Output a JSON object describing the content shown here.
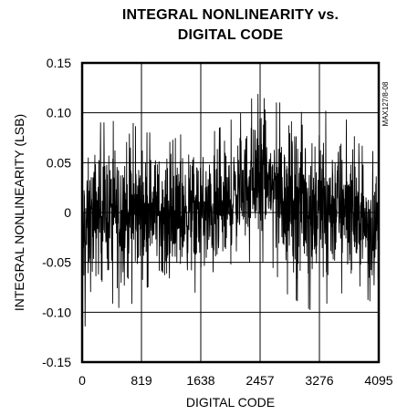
{
  "chart_data": {
    "type": "line",
    "title_lines": [
      "INTEGRAL NONLINEARITY vs.",
      "DIGITAL CODE"
    ],
    "xlabel": "DIGITAL CODE",
    "ylabel": "INTEGRAL NONLINEARITY (LSB)",
    "figure_id": "MAX127/8-08",
    "xlim": [
      0,
      4095
    ],
    "ylim": [
      -0.15,
      0.15
    ],
    "x_ticks": [
      0,
      819,
      1638,
      2457,
      3276,
      4095
    ],
    "x_tick_labels": [
      "0",
      "819",
      "1638",
      "2457",
      "3276",
      "4095"
    ],
    "y_ticks": [
      -0.15,
      -0.1,
      -0.05,
      0,
      0.05,
      0.1,
      0.15
    ],
    "y_tick_labels": [
      "-0.15",
      "-0.10",
      "-0.05",
      "0",
      "0.05",
      "0.10",
      "0.15"
    ],
    "grid": true,
    "series": [
      {
        "color": "#000000",
        "envelope": {
          "x": [
            0,
            200,
            400,
            600,
            800,
            1000,
            1200,
            1400,
            1638,
            1800,
            2000,
            2200,
            2400,
            2600,
            2800,
            3000,
            3200,
            3400,
            3600,
            3800,
            4000,
            4095
          ],
          "upper": [
            0.07,
            0.09,
            0.09,
            0.1,
            0.08,
            0.08,
            0.07,
            0.08,
            0.08,
            0.08,
            0.09,
            0.1,
            0.12,
            0.11,
            0.11,
            0.12,
            0.11,
            0.1,
            0.1,
            0.07,
            0.06,
            0.07
          ],
          "lower": [
            -0.12,
            -0.09,
            -0.09,
            -0.1,
            -0.08,
            -0.07,
            -0.09,
            -0.08,
            -0.08,
            -0.09,
            -0.08,
            -0.05,
            -0.05,
            -0.05,
            -0.08,
            -0.09,
            -0.1,
            -0.09,
            -0.08,
            -0.08,
            -0.09,
            -0.09
          ]
        }
      }
    ]
  }
}
